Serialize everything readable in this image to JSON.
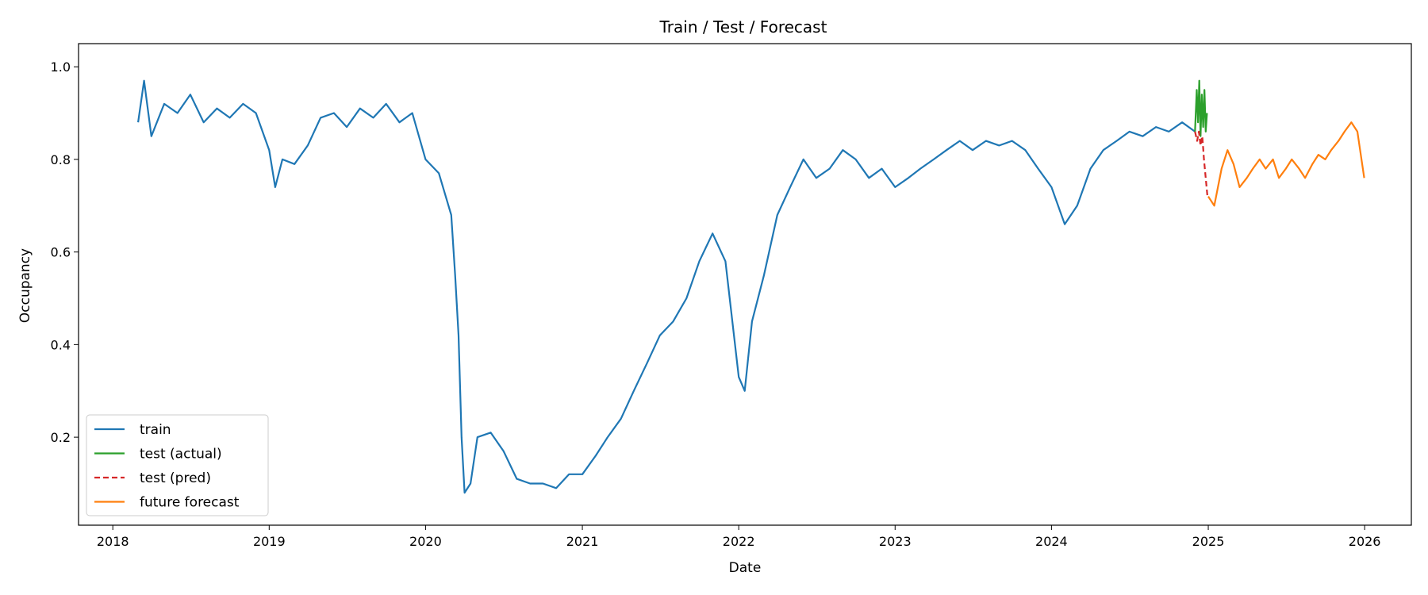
{
  "chart_data": {
    "type": "line",
    "title": "Train / Test / Forecast",
    "xlabel": "Date",
    "ylabel": "Occupancy",
    "xlim": [
      "2017-10-13",
      "2026-04-20"
    ],
    "ylim": [
      0.01,
      1.05
    ],
    "x_ticks": [
      "2018",
      "2019",
      "2020",
      "2021",
      "2022",
      "2023",
      "2024",
      "2025",
      "2026"
    ],
    "y_ticks": [
      "0.2",
      "0.4",
      "0.6",
      "0.8",
      "1.0"
    ],
    "grid": false,
    "legend_position": "lower-left",
    "series": [
      {
        "name": "train",
        "color": "#1f77b4",
        "style": "solid",
        "points": [
          [
            "2018-03-01",
            0.88
          ],
          [
            "2018-03-15",
            0.97
          ],
          [
            "2018-04-01",
            0.85
          ],
          [
            "2018-05-01",
            0.92
          ],
          [
            "2018-06-01",
            0.9
          ],
          [
            "2018-07-01",
            0.94
          ],
          [
            "2018-08-01",
            0.88
          ],
          [
            "2018-09-01",
            0.91
          ],
          [
            "2018-10-01",
            0.89
          ],
          [
            "2018-11-01",
            0.92
          ],
          [
            "2018-12-01",
            0.9
          ],
          [
            "2019-01-01",
            0.82
          ],
          [
            "2019-01-15",
            0.74
          ],
          [
            "2019-02-01",
            0.8
          ],
          [
            "2019-03-01",
            0.79
          ],
          [
            "2019-04-01",
            0.83
          ],
          [
            "2019-05-01",
            0.89
          ],
          [
            "2019-06-01",
            0.9
          ],
          [
            "2019-07-01",
            0.87
          ],
          [
            "2019-08-01",
            0.91
          ],
          [
            "2019-09-01",
            0.89
          ],
          [
            "2019-10-01",
            0.92
          ],
          [
            "2019-11-01",
            0.88
          ],
          [
            "2019-12-01",
            0.9
          ],
          [
            "2020-01-01",
            0.8
          ],
          [
            "2020-02-01",
            0.77
          ],
          [
            "2020-03-01",
            0.68
          ],
          [
            "2020-03-10",
            0.55
          ],
          [
            "2020-03-18",
            0.42
          ],
          [
            "2020-03-25",
            0.2
          ],
          [
            "2020-04-01",
            0.08
          ],
          [
            "2020-04-15",
            0.1
          ],
          [
            "2020-05-01",
            0.2
          ],
          [
            "2020-06-01",
            0.21
          ],
          [
            "2020-07-01",
            0.17
          ],
          [
            "2020-08-01",
            0.11
          ],
          [
            "2020-09-01",
            0.1
          ],
          [
            "2020-10-01",
            0.1
          ],
          [
            "2020-11-01",
            0.09
          ],
          [
            "2020-12-01",
            0.12
          ],
          [
            "2021-01-01",
            0.12
          ],
          [
            "2021-02-01",
            0.16
          ],
          [
            "2021-03-01",
            0.2
          ],
          [
            "2021-04-01",
            0.24
          ],
          [
            "2021-05-01",
            0.3
          ],
          [
            "2021-06-01",
            0.36
          ],
          [
            "2021-07-01",
            0.42
          ],
          [
            "2021-08-01",
            0.45
          ],
          [
            "2021-09-01",
            0.5
          ],
          [
            "2021-10-01",
            0.58
          ],
          [
            "2021-11-01",
            0.64
          ],
          [
            "2021-12-01",
            0.58
          ],
          [
            "2022-01-01",
            0.33
          ],
          [
            "2022-01-15",
            0.3
          ],
          [
            "2022-02-01",
            0.45
          ],
          [
            "2022-03-01",
            0.55
          ],
          [
            "2022-04-01",
            0.68
          ],
          [
            "2022-05-01",
            0.74
          ],
          [
            "2022-06-01",
            0.8
          ],
          [
            "2022-07-01",
            0.76
          ],
          [
            "2022-08-01",
            0.78
          ],
          [
            "2022-09-01",
            0.82
          ],
          [
            "2022-10-01",
            0.8
          ],
          [
            "2022-11-01",
            0.76
          ],
          [
            "2022-12-01",
            0.78
          ],
          [
            "2023-01-01",
            0.74
          ],
          [
            "2023-02-01",
            0.76
          ],
          [
            "2023-03-01",
            0.78
          ],
          [
            "2023-04-01",
            0.8
          ],
          [
            "2023-05-01",
            0.82
          ],
          [
            "2023-06-01",
            0.84
          ],
          [
            "2023-07-01",
            0.82
          ],
          [
            "2023-08-01",
            0.84
          ],
          [
            "2023-09-01",
            0.83
          ],
          [
            "2023-10-01",
            0.84
          ],
          [
            "2023-11-01",
            0.82
          ],
          [
            "2023-12-01",
            0.78
          ],
          [
            "2024-01-01",
            0.74
          ],
          [
            "2024-02-01",
            0.66
          ],
          [
            "2024-03-01",
            0.7
          ],
          [
            "2024-04-01",
            0.78
          ],
          [
            "2024-05-01",
            0.82
          ],
          [
            "2024-06-01",
            0.84
          ],
          [
            "2024-07-01",
            0.86
          ],
          [
            "2024-08-01",
            0.85
          ],
          [
            "2024-09-01",
            0.87
          ],
          [
            "2024-10-01",
            0.86
          ],
          [
            "2024-11-01",
            0.88
          ],
          [
            "2024-12-01",
            0.86
          ]
        ]
      },
      {
        "name": "test (actual)",
        "color": "#2ca02c",
        "style": "solid",
        "points": [
          [
            "2024-12-01",
            0.86
          ],
          [
            "2024-12-05",
            0.95
          ],
          [
            "2024-12-08",
            0.88
          ],
          [
            "2024-12-11",
            0.97
          ],
          [
            "2024-12-14",
            0.85
          ],
          [
            "2024-12-17",
            0.94
          ],
          [
            "2024-12-20",
            0.87
          ],
          [
            "2024-12-23",
            0.95
          ],
          [
            "2024-12-26",
            0.86
          ],
          [
            "2024-12-29",
            0.9
          ]
        ]
      },
      {
        "name": "test (pred)",
        "color": "#d62728",
        "style": "dashed",
        "points": [
          [
            "2024-12-01",
            0.86
          ],
          [
            "2024-12-06",
            0.84
          ],
          [
            "2024-12-10",
            0.86
          ],
          [
            "2024-12-14",
            0.83
          ],
          [
            "2024-12-18",
            0.85
          ],
          [
            "2024-12-22",
            0.8
          ],
          [
            "2024-12-26",
            0.76
          ],
          [
            "2024-12-30",
            0.72
          ]
        ]
      },
      {
        "name": "future forecast",
        "color": "#ff7f0e",
        "style": "solid",
        "points": [
          [
            "2025-01-01",
            0.72
          ],
          [
            "2025-01-15",
            0.7
          ],
          [
            "2025-02-01",
            0.78
          ],
          [
            "2025-02-15",
            0.82
          ],
          [
            "2025-03-01",
            0.79
          ],
          [
            "2025-03-15",
            0.74
          ],
          [
            "2025-04-01",
            0.76
          ],
          [
            "2025-04-15",
            0.78
          ],
          [
            "2025-05-01",
            0.8
          ],
          [
            "2025-05-15",
            0.78
          ],
          [
            "2025-06-01",
            0.8
          ],
          [
            "2025-06-15",
            0.76
          ],
          [
            "2025-07-01",
            0.78
          ],
          [
            "2025-07-15",
            0.8
          ],
          [
            "2025-08-01",
            0.78
          ],
          [
            "2025-08-15",
            0.76
          ],
          [
            "2025-09-01",
            0.79
          ],
          [
            "2025-09-15",
            0.81
          ],
          [
            "2025-10-01",
            0.8
          ],
          [
            "2025-10-15",
            0.82
          ],
          [
            "2025-11-01",
            0.84
          ],
          [
            "2025-11-15",
            0.86
          ],
          [
            "2025-12-01",
            0.88
          ],
          [
            "2025-12-15",
            0.86
          ],
          [
            "2025-12-31",
            0.76
          ]
        ]
      }
    ]
  }
}
